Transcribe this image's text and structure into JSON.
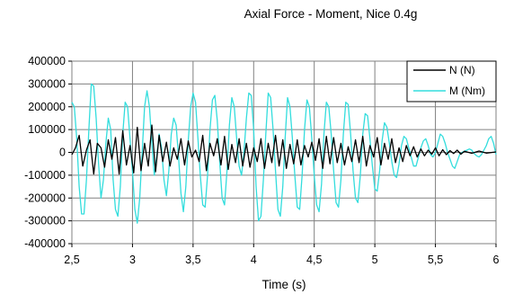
{
  "chart_data": {
    "type": "line",
    "title": "Axial Force - Moment, Nice 0.4g",
    "xlabel": "Time (s)",
    "ylabel": "",
    "xlim": [
      2.5,
      6
    ],
    "ylim": [
      -400000,
      400000
    ],
    "x_ticks": [
      "2,5",
      "3",
      "3,5",
      "4",
      "4,5",
      "5",
      "5,5",
      "6"
    ],
    "y_ticks": [
      "400000",
      "300000",
      "200000",
      "100000",
      "0",
      "-100000",
      "-200000",
      "-300000",
      "-400000"
    ],
    "grid": true,
    "legend_position": "top-right",
    "series": [
      {
        "name": "N (N)",
        "color": "#000000",
        "points": [
          [
            2.5,
            -10000
          ],
          [
            2.53,
            20000
          ],
          [
            2.56,
            75000
          ],
          [
            2.59,
            -60000
          ],
          [
            2.62,
            10000
          ],
          [
            2.65,
            55000
          ],
          [
            2.68,
            -95000
          ],
          [
            2.71,
            40000
          ],
          [
            2.74,
            20000
          ],
          [
            2.77,
            -65000
          ],
          [
            2.8,
            55000
          ],
          [
            2.83,
            -30000
          ],
          [
            2.86,
            65000
          ],
          [
            2.89,
            -95000
          ],
          [
            2.92,
            95000
          ],
          [
            2.95,
            -55000
          ],
          [
            2.98,
            30000
          ],
          [
            3.01,
            -90000
          ],
          [
            3.04,
            110000
          ],
          [
            3.07,
            -80000
          ],
          [
            3.1,
            40000
          ],
          [
            3.13,
            -60000
          ],
          [
            3.16,
            120000
          ],
          [
            3.19,
            -85000
          ],
          [
            3.22,
            75000
          ],
          [
            3.25,
            -40000
          ],
          [
            3.28,
            45000
          ],
          [
            3.31,
            -60000
          ],
          [
            3.34,
            20000
          ],
          [
            3.37,
            -30000
          ],
          [
            3.4,
            60000
          ],
          [
            3.43,
            -55000
          ],
          [
            3.46,
            50000
          ],
          [
            3.49,
            -20000
          ],
          [
            3.52,
            10000
          ],
          [
            3.55,
            -40000
          ],
          [
            3.58,
            75000
          ],
          [
            3.61,
            -80000
          ],
          [
            3.64,
            40000
          ],
          [
            3.67,
            -15000
          ],
          [
            3.7,
            60000
          ],
          [
            3.73,
            -55000
          ],
          [
            3.76,
            70000
          ],
          [
            3.79,
            -75000
          ],
          [
            3.82,
            35000
          ],
          [
            3.85,
            -45000
          ],
          [
            3.88,
            60000
          ],
          [
            3.91,
            -60000
          ],
          [
            3.94,
            40000
          ],
          [
            3.97,
            -65000
          ],
          [
            4.0,
            20000
          ],
          [
            4.03,
            -40000
          ],
          [
            4.06,
            60000
          ],
          [
            4.09,
            -70000
          ],
          [
            4.12,
            40000
          ],
          [
            4.15,
            -45000
          ],
          [
            4.18,
            75000
          ],
          [
            4.21,
            -60000
          ],
          [
            4.24,
            55000
          ],
          [
            4.27,
            -70000
          ],
          [
            4.3,
            35000
          ],
          [
            4.33,
            -50000
          ],
          [
            4.36,
            55000
          ],
          [
            4.39,
            -55000
          ],
          [
            4.42,
            30000
          ],
          [
            4.45,
            -20000
          ],
          [
            4.48,
            45000
          ],
          [
            4.51,
            -35000
          ],
          [
            4.54,
            60000
          ],
          [
            4.57,
            -70000
          ],
          [
            4.6,
            70000
          ],
          [
            4.63,
            -50000
          ],
          [
            4.66,
            65000
          ],
          [
            4.69,
            -45000
          ],
          [
            4.72,
            40000
          ],
          [
            4.75,
            -55000
          ],
          [
            4.78,
            25000
          ],
          [
            4.81,
            -40000
          ],
          [
            4.84,
            55000
          ],
          [
            4.87,
            -45000
          ],
          [
            4.9,
            70000
          ],
          [
            4.93,
            -60000
          ],
          [
            4.96,
            30000
          ],
          [
            4.99,
            -20000
          ],
          [
            5.02,
            65000
          ],
          [
            5.05,
            -55000
          ],
          [
            5.08,
            40000
          ],
          [
            5.11,
            -30000
          ],
          [
            5.14,
            60000
          ],
          [
            5.17,
            -45000
          ],
          [
            5.2,
            20000
          ],
          [
            5.23,
            -40000
          ],
          [
            5.26,
            30000
          ],
          [
            5.29,
            -15000
          ],
          [
            5.32,
            25000
          ],
          [
            5.35,
            -20000
          ],
          [
            5.38,
            15000
          ],
          [
            5.41,
            -15000
          ],
          [
            5.44,
            10000
          ],
          [
            5.47,
            -8000
          ],
          [
            5.5,
            20000
          ],
          [
            5.53,
            -15000
          ],
          [
            5.56,
            12000
          ],
          [
            5.59,
            -10000
          ],
          [
            5.62,
            8000
          ],
          [
            5.65,
            -5000
          ],
          [
            5.68,
            10000
          ],
          [
            5.71,
            -8000
          ],
          [
            5.74,
            5000
          ],
          [
            5.8,
            -4000
          ],
          [
            5.86,
            6000
          ],
          [
            5.92,
            -3000
          ],
          [
            6.0,
            2000
          ]
        ]
      },
      {
        "name": "M (Nm)",
        "color": "#33dddd",
        "points": [
          [
            2.5,
            220000
          ],
          [
            2.52,
            200000
          ],
          [
            2.54,
            60000
          ],
          [
            2.56,
            -150000
          ],
          [
            2.58,
            -270000
          ],
          [
            2.6,
            -270000
          ],
          [
            2.62,
            -120000
          ],
          [
            2.64,
            100000
          ],
          [
            2.66,
            300000
          ],
          [
            2.68,
            290000
          ],
          [
            2.7,
            150000
          ],
          [
            2.72,
            -50000
          ],
          [
            2.74,
            -200000
          ],
          [
            2.76,
            -120000
          ],
          [
            2.78,
            40000
          ],
          [
            2.8,
            150000
          ],
          [
            2.82,
            100000
          ],
          [
            2.84,
            -120000
          ],
          [
            2.86,
            -250000
          ],
          [
            2.88,
            -280000
          ],
          [
            2.9,
            -150000
          ],
          [
            2.92,
            80000
          ],
          [
            2.94,
            220000
          ],
          [
            2.96,
            200000
          ],
          [
            2.98,
            60000
          ],
          [
            3.0,
            -80000
          ],
          [
            3.02,
            -250000
          ],
          [
            3.04,
            -310000
          ],
          [
            3.06,
            -200000
          ],
          [
            3.08,
            0
          ],
          [
            3.1,
            200000
          ],
          [
            3.12,
            270000
          ],
          [
            3.14,
            200000
          ],
          [
            3.16,
            40000
          ],
          [
            3.18,
            -100000
          ],
          [
            3.2,
            -20000
          ],
          [
            3.22,
            80000
          ],
          [
            3.24,
            20000
          ],
          [
            3.26,
            -120000
          ],
          [
            3.28,
            -190000
          ],
          [
            3.3,
            -80000
          ],
          [
            3.32,
            80000
          ],
          [
            3.34,
            150000
          ],
          [
            3.36,
            120000
          ],
          [
            3.38,
            -20000
          ],
          [
            3.4,
            -180000
          ],
          [
            3.42,
            -260000
          ],
          [
            3.44,
            -150000
          ],
          [
            3.46,
            50000
          ],
          [
            3.48,
            200000
          ],
          [
            3.5,
            260000
          ],
          [
            3.52,
            220000
          ],
          [
            3.54,
            60000
          ],
          [
            3.56,
            -100000
          ],
          [
            3.58,
            -230000
          ],
          [
            3.6,
            -240000
          ],
          [
            3.62,
            -100000
          ],
          [
            3.64,
            100000
          ],
          [
            3.66,
            230000
          ],
          [
            3.68,
            250000
          ],
          [
            3.7,
            140000
          ],
          [
            3.72,
            -40000
          ],
          [
            3.74,
            -200000
          ],
          [
            3.76,
            -230000
          ],
          [
            3.78,
            -80000
          ],
          [
            3.8,
            120000
          ],
          [
            3.82,
            240000
          ],
          [
            3.84,
            200000
          ],
          [
            3.86,
            60000
          ],
          [
            3.88,
            -60000
          ],
          [
            3.9,
            -100000
          ],
          [
            3.92,
            0
          ],
          [
            3.94,
            150000
          ],
          [
            3.96,
            260000
          ],
          [
            3.98,
            250000
          ],
          [
            4.0,
            100000
          ],
          [
            4.02,
            -150000
          ],
          [
            4.04,
            -300000
          ],
          [
            4.06,
            -280000
          ],
          [
            4.08,
            -120000
          ],
          [
            4.1,
            80000
          ],
          [
            4.12,
            260000
          ],
          [
            4.14,
            240000
          ],
          [
            4.16,
            100000
          ],
          [
            4.18,
            -80000
          ],
          [
            4.2,
            -250000
          ],
          [
            4.22,
            -280000
          ],
          [
            4.24,
            -150000
          ],
          [
            4.26,
            60000
          ],
          [
            4.28,
            240000
          ],
          [
            4.3,
            200000
          ],
          [
            4.32,
            60000
          ],
          [
            4.34,
            -100000
          ],
          [
            4.36,
            -240000
          ],
          [
            4.38,
            -250000
          ],
          [
            4.4,
            -100000
          ],
          [
            4.42,
            100000
          ],
          [
            4.44,
            230000
          ],
          [
            4.46,
            200000
          ],
          [
            4.48,
            60000
          ],
          [
            4.5,
            -100000
          ],
          [
            4.52,
            -230000
          ],
          [
            4.54,
            -260000
          ],
          [
            4.56,
            -140000
          ],
          [
            4.58,
            80000
          ],
          [
            4.6,
            220000
          ],
          [
            4.62,
            200000
          ],
          [
            4.64,
            80000
          ],
          [
            4.66,
            -80000
          ],
          [
            4.68,
            -220000
          ],
          [
            4.7,
            -240000
          ],
          [
            4.72,
            -120000
          ],
          [
            4.74,
            80000
          ],
          [
            4.76,
            220000
          ],
          [
            4.78,
            210000
          ],
          [
            4.8,
            80000
          ],
          [
            4.82,
            -80000
          ],
          [
            4.84,
            -200000
          ],
          [
            4.86,
            -220000
          ],
          [
            4.88,
            -100000
          ],
          [
            4.9,
            80000
          ],
          [
            4.92,
            170000
          ],
          [
            4.94,
            160000
          ],
          [
            4.96,
            60000
          ],
          [
            4.98,
            -60000
          ],
          [
            5.0,
            -160000
          ],
          [
            5.02,
            -170000
          ],
          [
            5.04,
            -80000
          ],
          [
            5.06,
            50000
          ],
          [
            5.08,
            130000
          ],
          [
            5.1,
            110000
          ],
          [
            5.12,
            40000
          ],
          [
            5.14,
            -40000
          ],
          [
            5.16,
            -100000
          ],
          [
            5.18,
            -110000
          ],
          [
            5.2,
            -50000
          ],
          [
            5.22,
            30000
          ],
          [
            5.24,
            70000
          ],
          [
            5.26,
            60000
          ],
          [
            5.28,
            20000
          ],
          [
            5.3,
            -20000
          ],
          [
            5.32,
            -60000
          ],
          [
            5.34,
            -60000
          ],
          [
            5.36,
            -20000
          ],
          [
            5.38,
            20000
          ],
          [
            5.4,
            50000
          ],
          [
            5.42,
            60000
          ],
          [
            5.44,
            30000
          ],
          [
            5.46,
            -10000
          ],
          [
            5.48,
            -20000
          ],
          [
            5.5,
            0
          ],
          [
            5.52,
            40000
          ],
          [
            5.54,
            80000
          ],
          [
            5.56,
            70000
          ],
          [
            5.58,
            40000
          ],
          [
            5.6,
            0
          ],
          [
            5.62,
            -30000
          ],
          [
            5.64,
            -60000
          ],
          [
            5.66,
            -70000
          ],
          [
            5.68,
            -40000
          ],
          [
            5.7,
            -10000
          ],
          [
            5.72,
            0
          ],
          [
            5.74,
            5000
          ],
          [
            5.76,
            10000
          ],
          [
            5.78,
            15000
          ],
          [
            5.8,
            10000
          ],
          [
            5.82,
            -5000
          ],
          [
            5.84,
            -15000
          ],
          [
            5.86,
            -20000
          ],
          [
            5.88,
            -10000
          ],
          [
            5.9,
            10000
          ],
          [
            5.92,
            30000
          ],
          [
            5.94,
            60000
          ],
          [
            5.96,
            70000
          ],
          [
            5.98,
            40000
          ],
          [
            6.0,
            -10000
          ]
        ]
      }
    ]
  }
}
